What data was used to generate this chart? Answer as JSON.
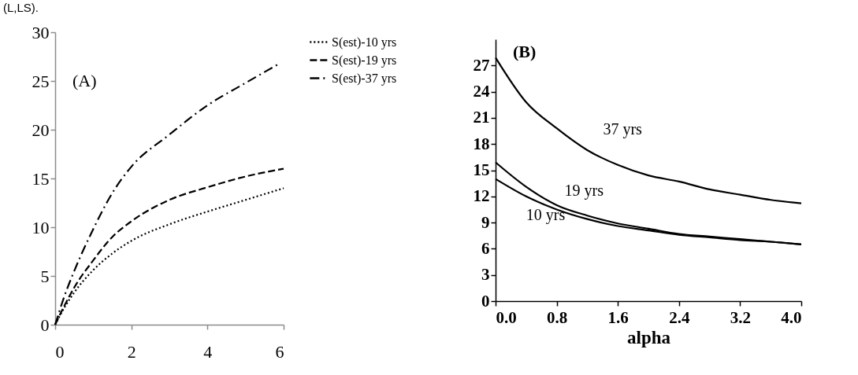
{
  "chart_data": [
    {
      "type": "line",
      "annotations": [
        "(L,LS).",
        "(A)"
      ],
      "x": [
        0,
        0.25,
        0.5,
        1,
        1.5,
        2,
        3,
        4,
        5,
        6
      ],
      "xlim": [
        0,
        6
      ],
      "xticks": [
        0,
        2,
        4,
        6
      ],
      "ylim": [
        0,
        30
      ],
      "yticks": [
        0,
        5,
        10,
        15,
        20,
        25,
        30
      ],
      "legend": "right",
      "series": [
        {
          "name": "S(est)-10 yrs",
          "color": "#000000",
          "line_style": "dotted",
          "values": [
            0,
            1.8,
            3.3,
            5.6,
            7.3,
            8.6,
            10.3,
            11.6,
            12.8,
            14.0
          ]
        },
        {
          "name": "S(est)-19 yrs",
          "color": "#000000",
          "line_style": "dashed",
          "values": [
            0,
            2.0,
            3.8,
            6.6,
            9.0,
            10.6,
            12.8,
            14.1,
            15.2,
            16.0
          ]
        },
        {
          "name": "S(est)-37 yrs",
          "color": "#000000",
          "line_style": "dashdot",
          "x": [
            0,
            0.25,
            0.5,
            1,
            1.5,
            2,
            3,
            4,
            5,
            5.85
          ],
          "values": [
            0,
            3.0,
            5.5,
            9.8,
            13.5,
            16.2,
            19.5,
            22.5,
            24.8,
            26.7
          ]
        }
      ]
    },
    {
      "type": "line",
      "xlabel": "alpha",
      "annotations": [
        "(B)"
      ],
      "x": [
        0,
        0.4,
        0.8,
        1.2,
        1.6,
        2.0,
        2.4,
        2.8,
        3.2,
        3.6,
        4.0
      ],
      "xlim": [
        0,
        4
      ],
      "xticks": [
        {
          "value": 0,
          "label": "0.0"
        },
        0.8,
        1.6,
        2.4,
        3.2,
        {
          "value": 4,
          "label": "4.0"
        }
      ],
      "ylim": [
        0,
        30
      ],
      "yticks": [
        0,
        3,
        6,
        9,
        12,
        15,
        18,
        21,
        24,
        27
      ],
      "line_style": "solid",
      "series": [
        {
          "name": "10 yrs",
          "color": "#000000",
          "values": [
            14.0,
            12.0,
            10.5,
            9.4,
            8.6,
            8.1,
            7.6,
            7.3,
            7.0,
            6.8,
            6.5
          ]
        },
        {
          "name": "19 yrs",
          "color": "#000000",
          "values": [
            15.9,
            13.1,
            11.0,
            9.8,
            8.9,
            8.3,
            7.7,
            7.4,
            7.1,
            6.8,
            6.5
          ]
        },
        {
          "name": "37 yrs",
          "color": "#000000",
          "values": [
            27.9,
            22.8,
            19.8,
            17.3,
            15.6,
            14.4,
            13.7,
            12.8,
            12.2,
            11.6,
            11.2
          ]
        }
      ]
    }
  ]
}
